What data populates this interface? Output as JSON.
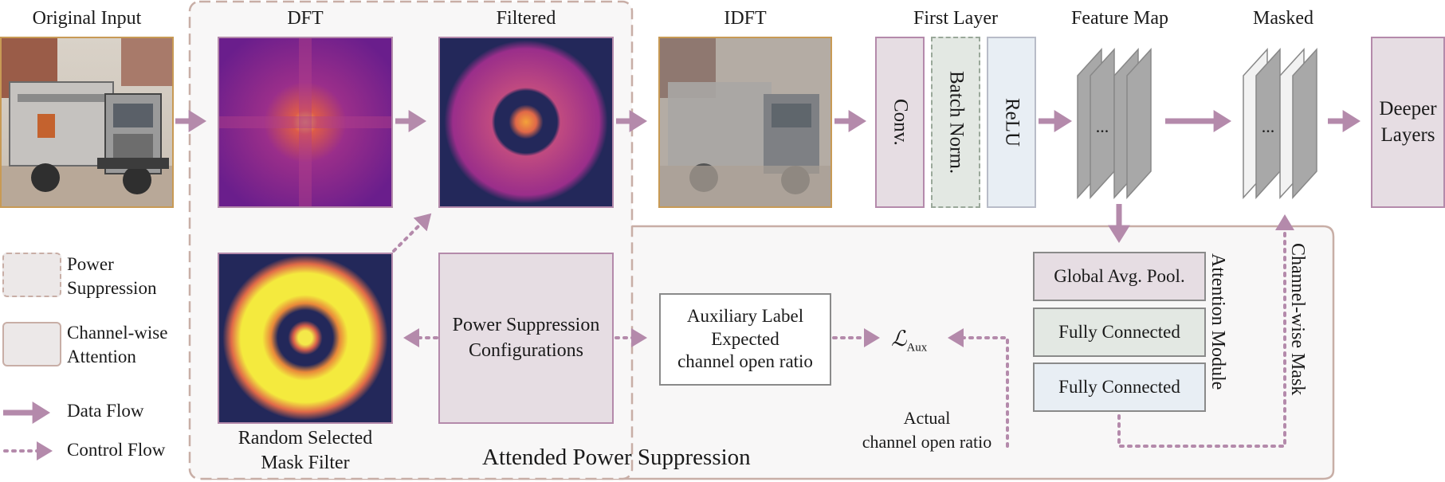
{
  "titles": {
    "original_input": "Original Input",
    "dft": "DFT",
    "filtered": "Filtered",
    "idft": "IDFT",
    "first_layer": "First Layer",
    "feature_map": "Feature Map",
    "masked": "Masked"
  },
  "first_layer": {
    "conv": "Conv.",
    "batch_norm": "Batch Norm.",
    "relu": "ReLU"
  },
  "ellipsis": "...",
  "deeper_layers": [
    "Deeper",
    "Layers"
  ],
  "legend": {
    "power_suppression": [
      "Power",
      "Suppression"
    ],
    "channel_attention": [
      "Channel-wise",
      "Attention"
    ],
    "data_flow": "Data Flow",
    "control_flow": "Control Flow"
  },
  "mask_filter_caption": [
    "Random Selected",
    "Mask Filter"
  ],
  "ps_config": [
    "Power Suppression",
    "Configurations"
  ],
  "aux_label": [
    "Auxiliary Label",
    "Expected",
    "channel open ratio"
  ],
  "loss": {
    "symbol": "ℒ",
    "subscript": "Aux"
  },
  "attention_module": {
    "title": "Attention Module",
    "gap": "Global Avg. Pool.",
    "fc1": "Fully Connected",
    "fc2": "Fully Connected"
  },
  "actual_ratio": [
    "Actual",
    "channel open ratio"
  ],
  "channel_mask": "Channel-wise Mask",
  "aps_title": "Attended Power Suppression",
  "colors": {
    "arrow": "#b48aab",
    "frame": "#c8aea6",
    "panel_fill": "#e6dde3",
    "panel_border": "#b48aab",
    "bn_fill": "#e3e8e3",
    "relu_fill": "#e8eef4",
    "gray_map": "#a8a8a8",
    "image_border": "#c89a55"
  }
}
